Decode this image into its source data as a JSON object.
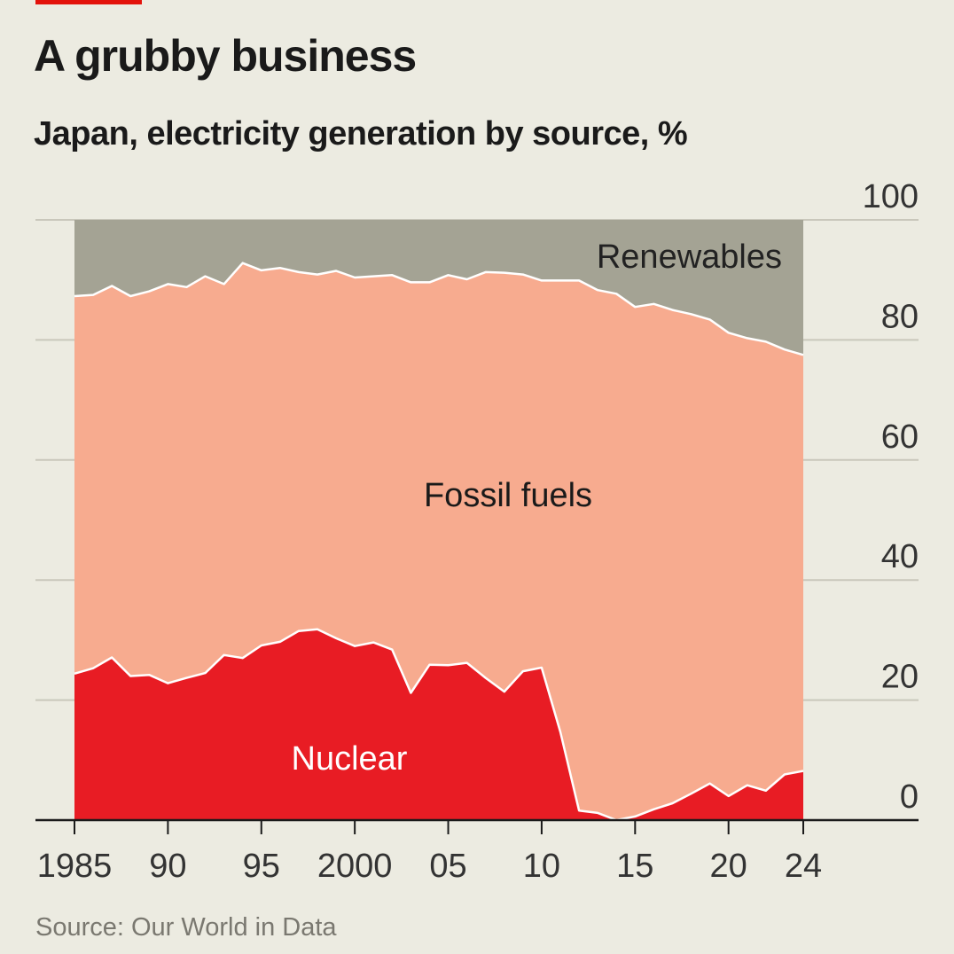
{
  "header": {
    "title": "A grubby business",
    "subtitle": "Japan, electricity generation by source, %"
  },
  "footer": {
    "source": "Source: Our World in Data"
  },
  "colors": {
    "background": "#ecebe1",
    "nuclear": "#e81c24",
    "fossil": "#f7ab8f",
    "renewables": "#a4a394",
    "grid": "#c9c7bb",
    "axis": "#1a1a1a"
  },
  "chart_data": {
    "type": "area",
    "stacked": true,
    "title": "A grubby business",
    "subtitle": "Japan, electricity generation by source, %",
    "ylim": [
      0,
      100
    ],
    "yticks": [
      0,
      20,
      40,
      60,
      80,
      100
    ],
    "y_axis_side": "right",
    "xlim": [
      1985,
      2024
    ],
    "xticks": [
      1985,
      1990,
      1995,
      2000,
      2005,
      2010,
      2015,
      2020,
      2024
    ],
    "xtick_labels": [
      "1985",
      "90",
      "95",
      "2000",
      "05",
      "10",
      "15",
      "20",
      "24"
    ],
    "x": [
      1985,
      1986,
      1987,
      1988,
      1989,
      1990,
      1991,
      1992,
      1993,
      1994,
      1995,
      1996,
      1997,
      1998,
      1999,
      2000,
      2001,
      2002,
      2003,
      2004,
      2005,
      2006,
      2007,
      2008,
      2009,
      2010,
      2011,
      2012,
      2013,
      2014,
      2015,
      2016,
      2017,
      2018,
      2019,
      2020,
      2021,
      2022,
      2023,
      2024
    ],
    "series": [
      {
        "name": "Nuclear",
        "values": [
          24.4,
          25.3,
          27.1,
          24.0,
          24.2,
          22.8,
          23.7,
          24.5,
          27.5,
          27.0,
          29.1,
          29.7,
          31.5,
          31.8,
          30.3,
          29.0,
          29.6,
          28.4,
          21.2,
          25.9,
          25.8,
          26.2,
          23.7,
          21.4,
          24.8,
          25.4,
          14.7,
          1.6,
          1.2,
          0.0,
          0.6,
          1.8,
          2.8,
          4.4,
          6.1,
          4.0,
          5.8,
          4.9,
          7.6,
          8.2
        ]
      },
      {
        "name": "Fossil fuels",
        "values": [
          62.9,
          62.2,
          61.9,
          63.3,
          63.9,
          66.5,
          65.1,
          66.1,
          61.8,
          65.8,
          62.5,
          62.3,
          59.8,
          59.1,
          61.2,
          61.4,
          61.0,
          62.4,
          68.4,
          63.7,
          65.0,
          63.9,
          67.6,
          69.8,
          66.1,
          64.5,
          75.2,
          88.3,
          87.1,
          87.7,
          84.9,
          84.2,
          82.2,
          79.9,
          77.3,
          77.2,
          74.5,
          74.8,
          70.8,
          69.3
        ]
      },
      {
        "name": "Renewables",
        "values": [
          12.7,
          12.5,
          11.0,
          12.7,
          11.9,
          10.7,
          11.2,
          9.4,
          10.7,
          7.2,
          8.4,
          8.0,
          8.7,
          9.1,
          8.5,
          9.6,
          9.4,
          9.2,
          10.4,
          10.4,
          9.2,
          9.9,
          8.7,
          8.8,
          9.1,
          10.1,
          10.1,
          10.1,
          11.7,
          12.3,
          14.5,
          14.0,
          15.0,
          15.7,
          16.6,
          18.8,
          19.7,
          20.3,
          21.6,
          22.5
        ]
      }
    ],
    "annotations": [
      "Renewables",
      "Fossil fuels",
      "Nuclear"
    ]
  }
}
